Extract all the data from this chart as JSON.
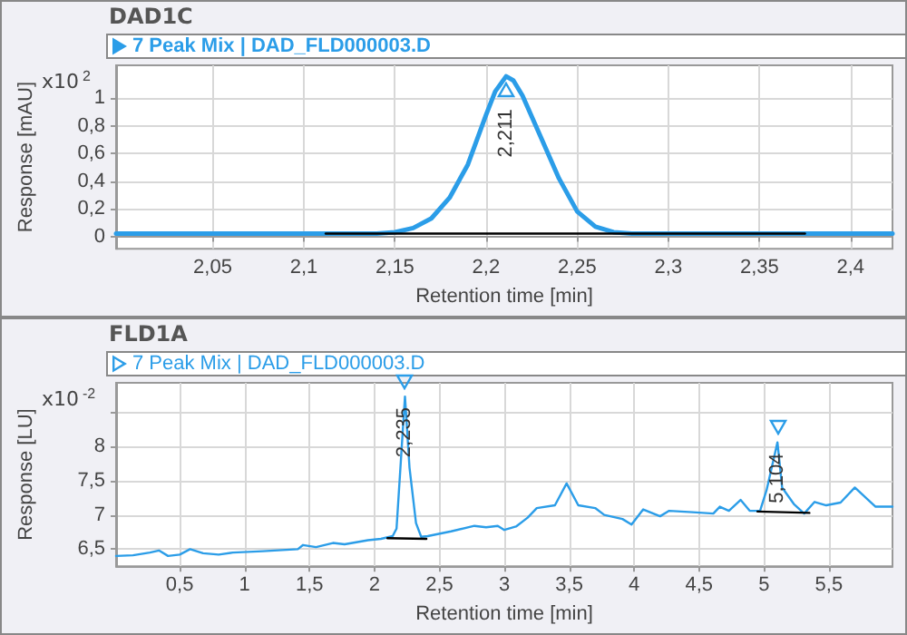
{
  "chart_data": [
    {
      "type": "line",
      "title": "DAD1C",
      "xlabel": "Retention time [min]",
      "ylabel": "Response [mAU]",
      "xlim": [
        1.997,
        2.423
      ],
      "ylim": [
        -0.09,
        1.24
      ],
      "xticks": [
        {
          "value": 2.05,
          "label": "2,05"
        },
        {
          "value": 2.1,
          "label": "2,1"
        },
        {
          "value": 2.15,
          "label": "2,15"
        },
        {
          "value": 2.2,
          "label": "2,2"
        },
        {
          "value": 2.25,
          "label": "2,25"
        },
        {
          "value": 2.3,
          "label": "2,3"
        },
        {
          "value": 2.35,
          "label": "2,35"
        },
        {
          "value": 2.4,
          "label": "2,4"
        }
      ],
      "yticks": [
        0,
        {
          "value": 0.2,
          "label": "0,2"
        },
        {
          "value": 0.4,
          "label": "0,4"
        },
        {
          "value": 0.6,
          "label": "0,6"
        },
        {
          "value": 0.8,
          "label": "0,8"
        },
        1
      ],
      "grid": true,
      "legend": "top",
      "marker": "none",
      "line_style": "solid",
      "annotations": [
        "x10$^{2}$",
        {
          "text": "2,211",
          "x": 2.211,
          "y": 1.16
        }
      ],
      "series": [
        {
          "name": "7 Peak Mix | DAD_FLD000003.D",
          "color": "#2b9de8",
          "x": [
            1.997,
            2.05,
            2.1,
            2.14,
            2.15,
            2.16,
            2.17,
            2.18,
            2.19,
            2.2,
            2.205,
            2.211,
            2.215,
            2.22,
            2.23,
            2.24,
            2.25,
            2.26,
            2.27,
            2.28,
            2.35,
            2.423
          ],
          "values": [
            0.02,
            0.02,
            0.02,
            0.02,
            0.03,
            0.06,
            0.13,
            0.28,
            0.52,
            0.88,
            1.05,
            1.16,
            1.13,
            1.02,
            0.72,
            0.42,
            0.18,
            0.07,
            0.03,
            0.02,
            0.02,
            0.02
          ]
        },
        {
          "color": "#000000",
          "x": [
            2.112,
            2.375
          ],
          "values": [
            0.02,
            0.02
          ]
        }
      ]
    },
    {
      "type": "line",
      "title": "FLD1A",
      "xlabel": "Retention time [min]",
      "ylabel": "Response [LU]",
      "xlim": [
        0.01,
        5.99
      ],
      "ylim": [
        6.25,
        8.93
      ],
      "xticks": [
        {
          "value": 0.5,
          "label": "0,5"
        },
        1,
        {
          "value": 1.5,
          "label": "1,5"
        },
        2,
        {
          "value": 2.5,
          "label": "2,5"
        },
        3,
        {
          "value": 3.5,
          "label": "3,5"
        },
        4,
        {
          "value": 4.5,
          "label": "4,5"
        },
        5,
        {
          "value": 5.5,
          "label": "5,5"
        }
      ],
      "yticks": [
        {
          "value": 6.5,
          "label": "6,5"
        },
        7,
        {
          "value": 7.5,
          "label": "7,5"
        },
        8,
        {
          "value": 8.5,
          "label": null
        }
      ],
      "grid": true,
      "legend": "top",
      "marker": "none",
      "line_style": "solid",
      "annotations": [
        "x10$^{-2}$",
        {
          "text": "2,235",
          "x": 2.235,
          "y": 8.73
        },
        {
          "text": "5,104",
          "x": 5.104,
          "y": 8.06
        }
      ],
      "series": [
        {
          "name": "7 Peak Mix | DAD_FLD000003.D",
          "color": "#2b9de8",
          "x": [
            0.01,
            0.14,
            0.27,
            0.34,
            0.41,
            0.5,
            0.58,
            0.68,
            0.8,
            0.91,
            1.14,
            1.41,
            1.45,
            1.55,
            1.68,
            1.77,
            1.95,
            2.05,
            2.14,
            2.17,
            2.2,
            2.235,
            2.27,
            2.32,
            2.36,
            2.41,
            2.59,
            2.77,
            2.86,
            2.95,
            3.0,
            3.09,
            3.18,
            3.25,
            3.39,
            3.48,
            3.57,
            3.7,
            3.77,
            3.91,
            3.98,
            4.07,
            4.2,
            4.27,
            4.45,
            4.61,
            4.66,
            4.73,
            4.82,
            4.89,
            4.97,
            5.02,
            5.104,
            5.14,
            5.23,
            5.31,
            5.39,
            5.48,
            5.59,
            5.7,
            5.82,
            5.86,
            5.99
          ],
          "values": [
            6.4,
            6.41,
            6.45,
            6.48,
            6.4,
            6.42,
            6.5,
            6.44,
            6.42,
            6.45,
            6.47,
            6.5,
            6.56,
            6.53,
            6.59,
            6.57,
            6.63,
            6.65,
            6.69,
            6.8,
            7.69,
            8.73,
            7.69,
            6.88,
            6.68,
            6.69,
            6.76,
            6.84,
            6.82,
            6.84,
            6.78,
            6.83,
            6.96,
            7.1,
            7.14,
            7.46,
            7.14,
            7.1,
            7.0,
            6.94,
            6.86,
            7.08,
            6.98,
            7.06,
            7.04,
            7.02,
            7.12,
            7.06,
            7.22,
            7.06,
            7.06,
            7.36,
            8.06,
            7.4,
            7.16,
            7.02,
            7.19,
            7.14,
            7.18,
            7.4,
            7.19,
            7.12,
            7.12
          ]
        },
        {
          "color": "#000000",
          "x": [
            2.1,
            2.4
          ],
          "values": [
            6.66,
            6.65
          ]
        },
        {
          "color": "#000000",
          "x": [
            4.95,
            5.35
          ],
          "values": [
            7.05,
            7.03
          ]
        }
      ]
    }
  ]
}
